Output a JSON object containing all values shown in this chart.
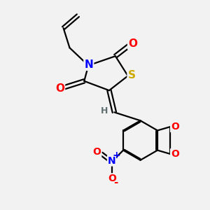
{
  "bg_color": "#f2f2f2",
  "bond_color": "#000000",
  "bond_width": 1.6,
  "atom_colors": {
    "O": "#ff0000",
    "N": "#0000ff",
    "S": "#ccaa00",
    "H": "#607070",
    "C": "#000000"
  },
  "font_size_atom": 11,
  "font_size_small": 9
}
